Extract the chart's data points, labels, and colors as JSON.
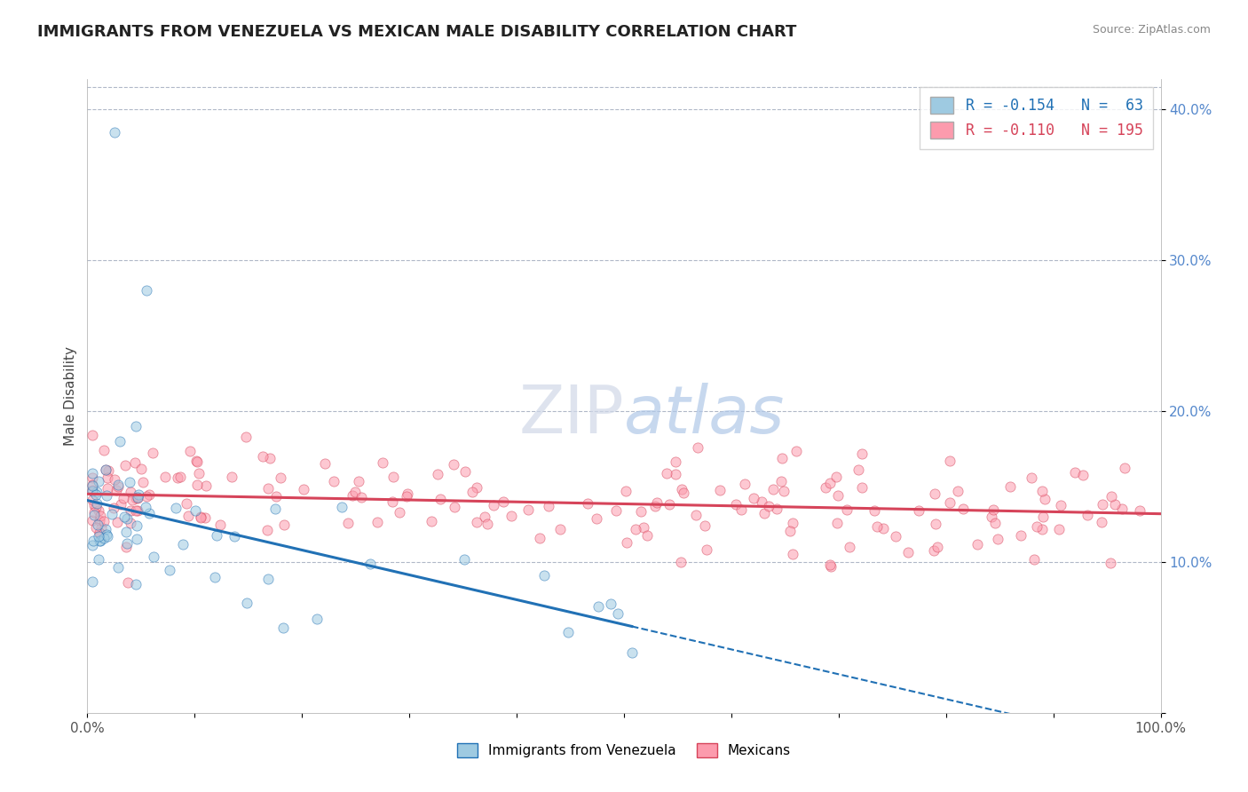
{
  "title": "IMMIGRANTS FROM VENEZUELA VS MEXICAN MALE DISABILITY CORRELATION CHART",
  "source": "Source: ZipAtlas.com",
  "ylabel": "Male Disability",
  "xlim": [
    0,
    1.0
  ],
  "ylim": [
    0,
    0.42
  ],
  "color_venezuela": "#9ecae1",
  "color_mexico": "#fc9bad",
  "color_line_venezuela": "#2171b5",
  "color_line_mexico": "#d6445a",
  "marker_size": 65,
  "marker_alpha": 0.55,
  "background_color": "#ffffff",
  "legend_R1": "R = -0.154",
  "legend_N1": "N =  63",
  "legend_R2": "R = -0.110",
  "legend_N2": "N = 195",
  "n_venezuela": 63,
  "n_mexico": 195
}
